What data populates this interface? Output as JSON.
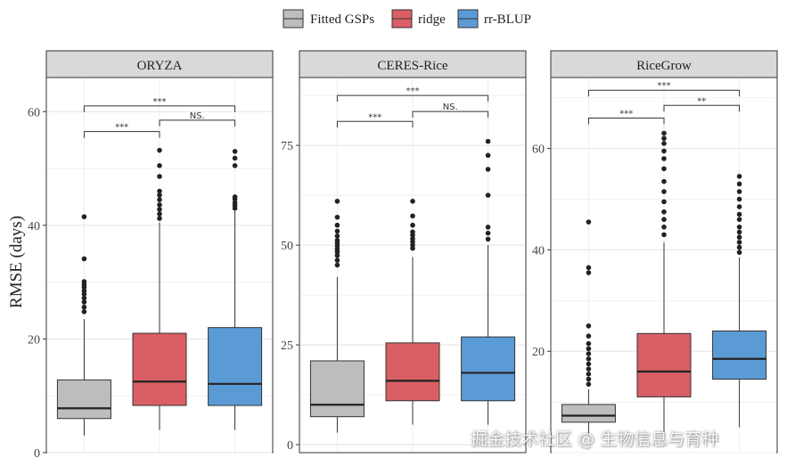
{
  "legend": {
    "items": [
      {
        "label": "Fitted GSPs",
        "color": "#bdbdbd"
      },
      {
        "label": "ridge",
        "color": "#d95f64"
      },
      {
        "label": "rr-BLUP",
        "color": "#5b9bd5"
      }
    ]
  },
  "ylabel": "RMSE (days)",
  "watermark": "掘金技术社区 @ 生物信息与育种",
  "chart_data": [
    {
      "type": "box",
      "title": "ORYZA",
      "ylim": [
        0,
        66
      ],
      "yticks": [
        0,
        20,
        40,
        60
      ],
      "series": [
        {
          "name": "Fitted GSPs",
          "color": "#bdbdbd",
          "whisker_low": 3,
          "q1": 6,
          "median": 7.8,
          "q3": 12.8,
          "whisker_high": 23.5,
          "outliers": [
            24.8,
            25.6,
            26.5,
            27.2,
            27.9,
            28.5,
            29.1,
            29.6,
            30.1,
            34.1,
            41.5
          ]
        },
        {
          "name": "ridge",
          "color": "#d95f64",
          "whisker_low": 4,
          "q1": 8.3,
          "median": 12.5,
          "q3": 21,
          "whisker_high": 40.5,
          "outliers": [
            41.2,
            42,
            42.8,
            43.6,
            44.5,
            45.3,
            46,
            48.6,
            50.5,
            53.2
          ]
        },
        {
          "name": "rr-BLUP",
          "color": "#5b9bd5",
          "whisker_low": 4,
          "q1": 8.3,
          "median": 12.1,
          "q3": 22,
          "whisker_high": 42.5,
          "outliers": [
            43,
            43.5,
            44,
            44.6,
            45,
            50.5,
            51.8,
            53
          ]
        }
      ],
      "brackets": [
        {
          "from": 0,
          "to": 1,
          "label": "***",
          "y": 56.5
        },
        {
          "from": 1,
          "to": 2,
          "label": "NS.",
          "y": 58.5
        },
        {
          "from": 0,
          "to": 2,
          "label": "***",
          "y": 61
        }
      ]
    },
    {
      "type": "box",
      "title": "CERES-Rice",
      "ylim": [
        -2,
        92
      ],
      "yticks": [
        0,
        25,
        50,
        75
      ],
      "series": [
        {
          "name": "Fitted GSPs",
          "color": "#bdbdbd",
          "whisker_low": 3,
          "q1": 7,
          "median": 10,
          "q3": 21,
          "whisker_high": 42,
          "outliers": [
            45,
            46.2,
            47.4,
            48.3,
            49,
            49.8,
            50.5,
            51.2,
            52.3,
            53.5,
            55,
            57,
            61
          ]
        },
        {
          "name": "ridge",
          "color": "#d95f64",
          "whisker_low": 5,
          "q1": 11,
          "median": 16,
          "q3": 25.5,
          "whisker_high": 47,
          "outliers": [
            49.2,
            50,
            50.8,
            51.6,
            52.5,
            53.3,
            55,
            57.3,
            61
          ]
        },
        {
          "name": "rr-BLUP",
          "color": "#5b9bd5",
          "whisker_low": 5,
          "q1": 11,
          "median": 18,
          "q3": 27,
          "whisker_high": 50,
          "outliers": [
            51.5,
            53,
            54.5,
            62.5,
            69,
            72.5,
            76
          ]
        }
      ],
      "brackets": [
        {
          "from": 0,
          "to": 1,
          "label": "***",
          "y": 81
        },
        {
          "from": 1,
          "to": 2,
          "label": "NS.",
          "y": 83.5
        },
        {
          "from": 0,
          "to": 2,
          "label": "***",
          "y": 87.5
        }
      ]
    },
    {
      "type": "box",
      "title": "RiceGrow",
      "ylim": [
        0,
        74
      ],
      "yticks": [
        20,
        40,
        60
      ],
      "series": [
        {
          "name": "Fitted GSPs",
          "color": "#bdbdbd",
          "whisker_low": 3.5,
          "q1": 6,
          "median": 7.3,
          "q3": 9.5,
          "whisker_high": 12.5,
          "outliers": [
            13.5,
            14.5,
            15.5,
            16.5,
            17.5,
            18.5,
            19.5,
            20.5,
            21.5,
            23,
            25,
            35.5,
            36.5,
            45.5
          ]
        },
        {
          "name": "ridge",
          "color": "#d95f64",
          "whisker_low": 3.5,
          "q1": 11,
          "median": 16,
          "q3": 23.5,
          "whisker_high": 41.5,
          "outliers": [
            43,
            44.5,
            46,
            47.5,
            49.5,
            51.5,
            53.5,
            56,
            58,
            59.5,
            61,
            62,
            63
          ]
        },
        {
          "name": "rr-BLUP",
          "color": "#5b9bd5",
          "whisker_low": 5,
          "q1": 14.5,
          "median": 18.5,
          "q3": 24,
          "whisker_high": 38.5,
          "outliers": [
            39.5,
            40.5,
            41.5,
            42.5,
            43.5,
            44.5,
            46,
            47,
            48.5,
            50,
            51.5,
            53,
            54.5
          ]
        }
      ],
      "brackets": [
        {
          "from": 0,
          "to": 1,
          "label": "***",
          "y": 66
        },
        {
          "from": 1,
          "to": 2,
          "label": "**",
          "y": 68.5
        },
        {
          "from": 0,
          "to": 2,
          "label": "***",
          "y": 71.5
        }
      ]
    }
  ]
}
